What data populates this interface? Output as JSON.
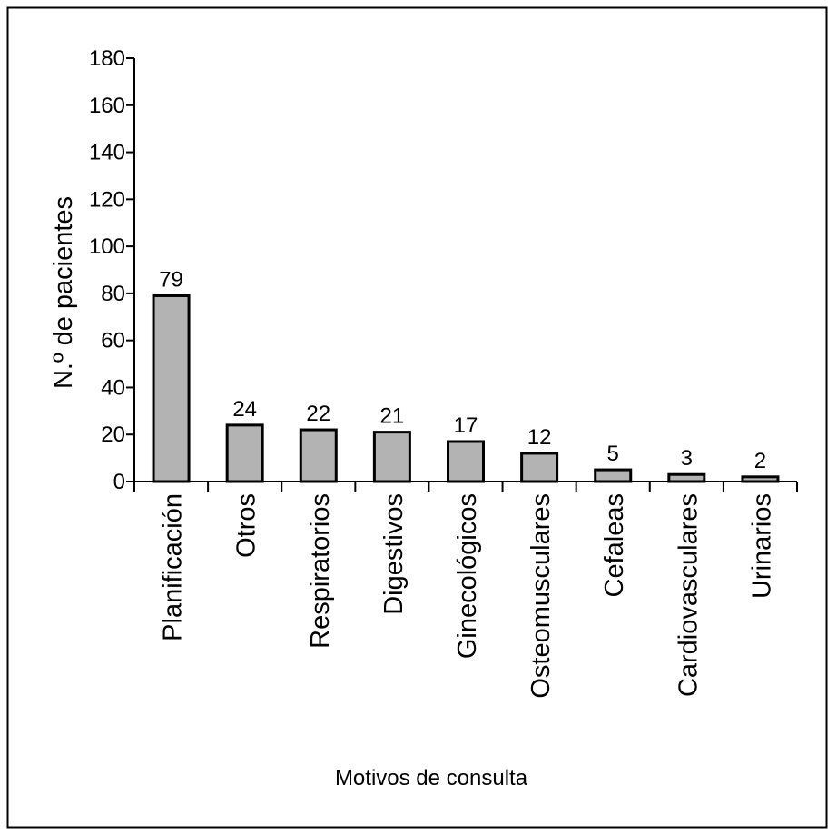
{
  "chart_data": {
    "type": "bar",
    "title": "",
    "xlabel": "Motivos de consulta",
    "ylabel": "N.º de pacientes",
    "ylim": [
      0,
      180
    ],
    "yticks": [
      "0",
      "20",
      "40",
      "60",
      "80",
      "100",
      "120",
      "140",
      "160",
      "180"
    ],
    "categories": [
      "Planificación",
      "Otros",
      "Respiratorios",
      "Digestivos",
      "Ginecológicos",
      "Osteomusculares",
      "Cefaleas",
      "Cardiovasculares",
      "Urinarios"
    ],
    "values": [
      79,
      24,
      22,
      21,
      17,
      12,
      5,
      3,
      2
    ],
    "data_labels": [
      "79",
      "24",
      "22",
      "21",
      "17",
      "12",
      "5",
      "3",
      "2"
    ],
    "grid": false,
    "legend": "none",
    "bar_color": "#b3b3b3",
    "bar_edge_color": "#000000"
  }
}
